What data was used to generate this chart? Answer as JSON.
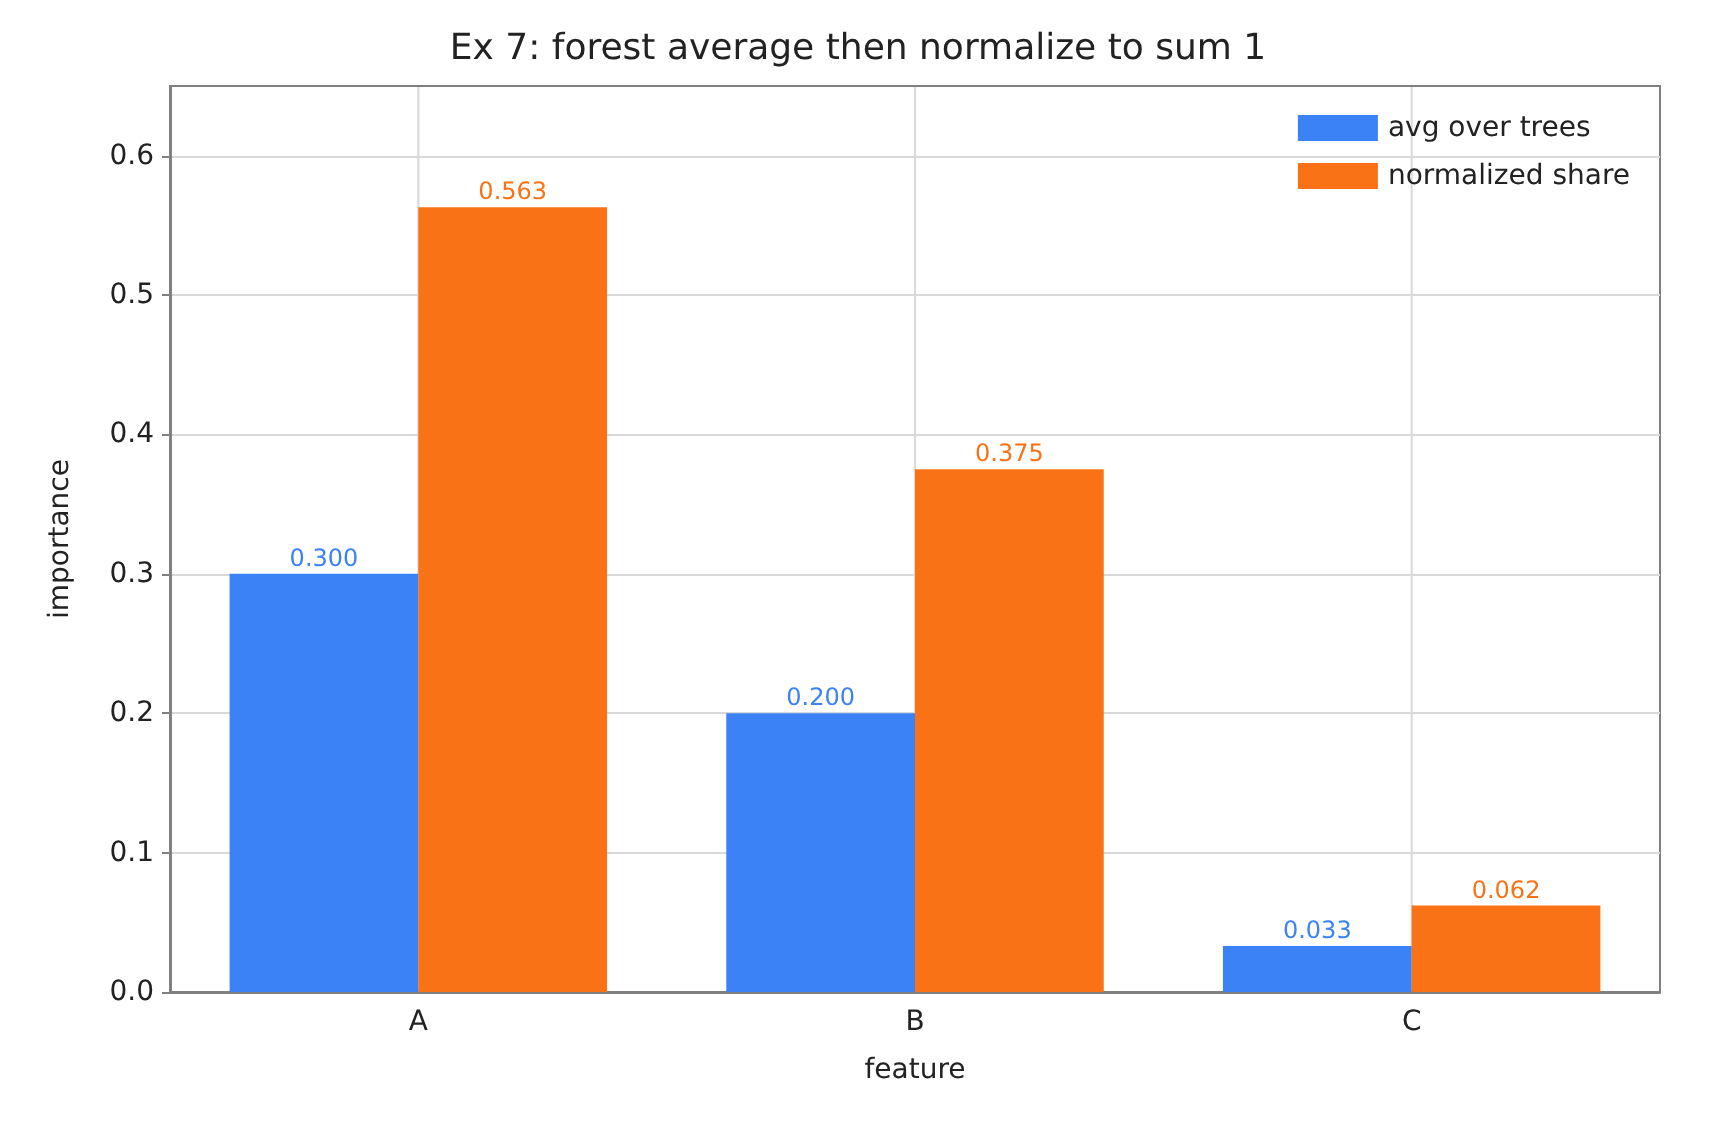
{
  "chart_data": {
    "type": "bar",
    "title": "Ex 7: forest average then normalize to sum 1",
    "xlabel": "feature",
    "ylabel": "importance",
    "categories": [
      "A",
      "B",
      "C"
    ],
    "series": [
      {
        "name": "avg over trees",
        "color": "#3b82f6",
        "values": [
          0.3,
          0.2,
          0.033
        ],
        "value_labels": [
          "0.300",
          "0.200",
          "0.033"
        ]
      },
      {
        "name": "normalized share",
        "color": "#f97316",
        "values": [
          0.563,
          0.375,
          0.062
        ],
        "value_labels": [
          "0.563",
          "0.375",
          "0.062"
        ]
      }
    ],
    "ylim": [
      0,
      0.65
    ],
    "yticks": [
      {
        "value": 0,
        "label": "0.0"
      },
      0.1,
      0.2,
      0.3,
      0.4,
      0.5,
      0.6
    ],
    "grid": true,
    "legend": "top right"
  }
}
